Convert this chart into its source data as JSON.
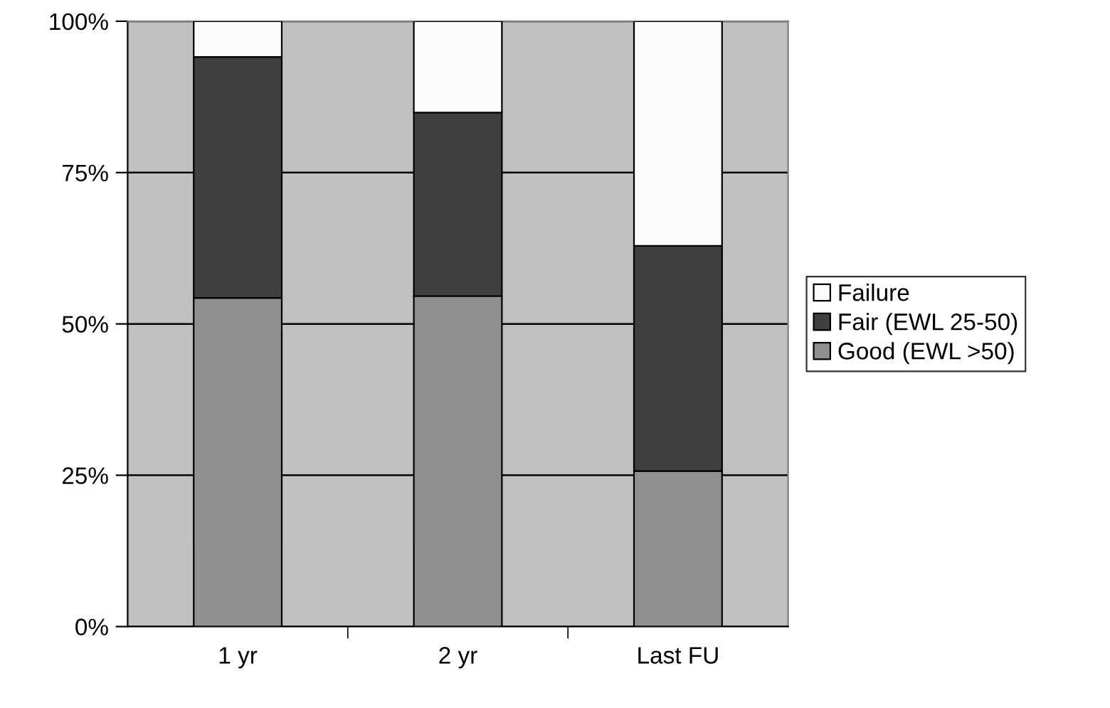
{
  "chart_data": {
    "type": "bar",
    "stacked": true,
    "categories": [
      "1 yr",
      "2 yr",
      "Last FU"
    ],
    "series": [
      {
        "name": "Good (EWL >50)",
        "color": "#909090",
        "values": [
          54.3,
          54.6,
          25.7
        ]
      },
      {
        "name": "Fair (EWL 25-50)",
        "color": "#404040",
        "values": [
          39.8,
          30.3,
          37.2
        ]
      },
      {
        "name": "Failure",
        "color": "#fcfcfc",
        "values": [
          5.9,
          15.1,
          37.1
        ]
      }
    ],
    "ylim": [
      0,
      100
    ],
    "yticks": [
      {
        "value": 0,
        "label": "0%"
      },
      {
        "value": 25,
        "label": "25%"
      },
      {
        "value": 50,
        "label": "50%"
      },
      {
        "value": 75,
        "label": "75%"
      },
      {
        "value": 100,
        "label": "100%"
      }
    ],
    "grid": "y",
    "legend": "right"
  }
}
